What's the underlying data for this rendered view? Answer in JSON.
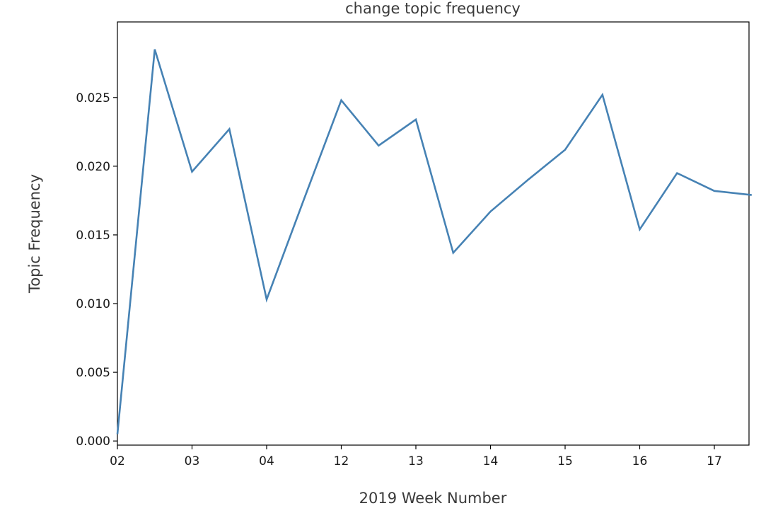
{
  "chart_data": {
    "type": "line",
    "title": "change topic frequency",
    "xlabel": "2019 Week Number",
    "ylabel": "Topic Frequency",
    "x_tick_labels": [
      "02",
      "03",
      "04",
      "12",
      "13",
      "14",
      "15",
      "16",
      "17"
    ],
    "y_tick_labels": [
      "0.000",
      "0.005",
      "0.010",
      "0.015",
      "0.020",
      "0.025"
    ],
    "y_ticks": [
      0.0,
      0.005,
      0.01,
      0.015,
      0.02,
      0.025
    ],
    "ylim": [
      -0.0003,
      0.0305
    ],
    "grid": false,
    "line_color": "#4682b4",
    "series": [
      {
        "values": [
          0.0005,
          0.0285,
          0.0196,
          0.0227,
          0.0103,
          0.0176,
          0.0248,
          0.0215,
          0.0234,
          0.0137,
          0.0167,
          0.019,
          0.0212,
          0.0252,
          0.0154,
          0.0195,
          0.0182,
          0.0179
        ]
      }
    ]
  }
}
